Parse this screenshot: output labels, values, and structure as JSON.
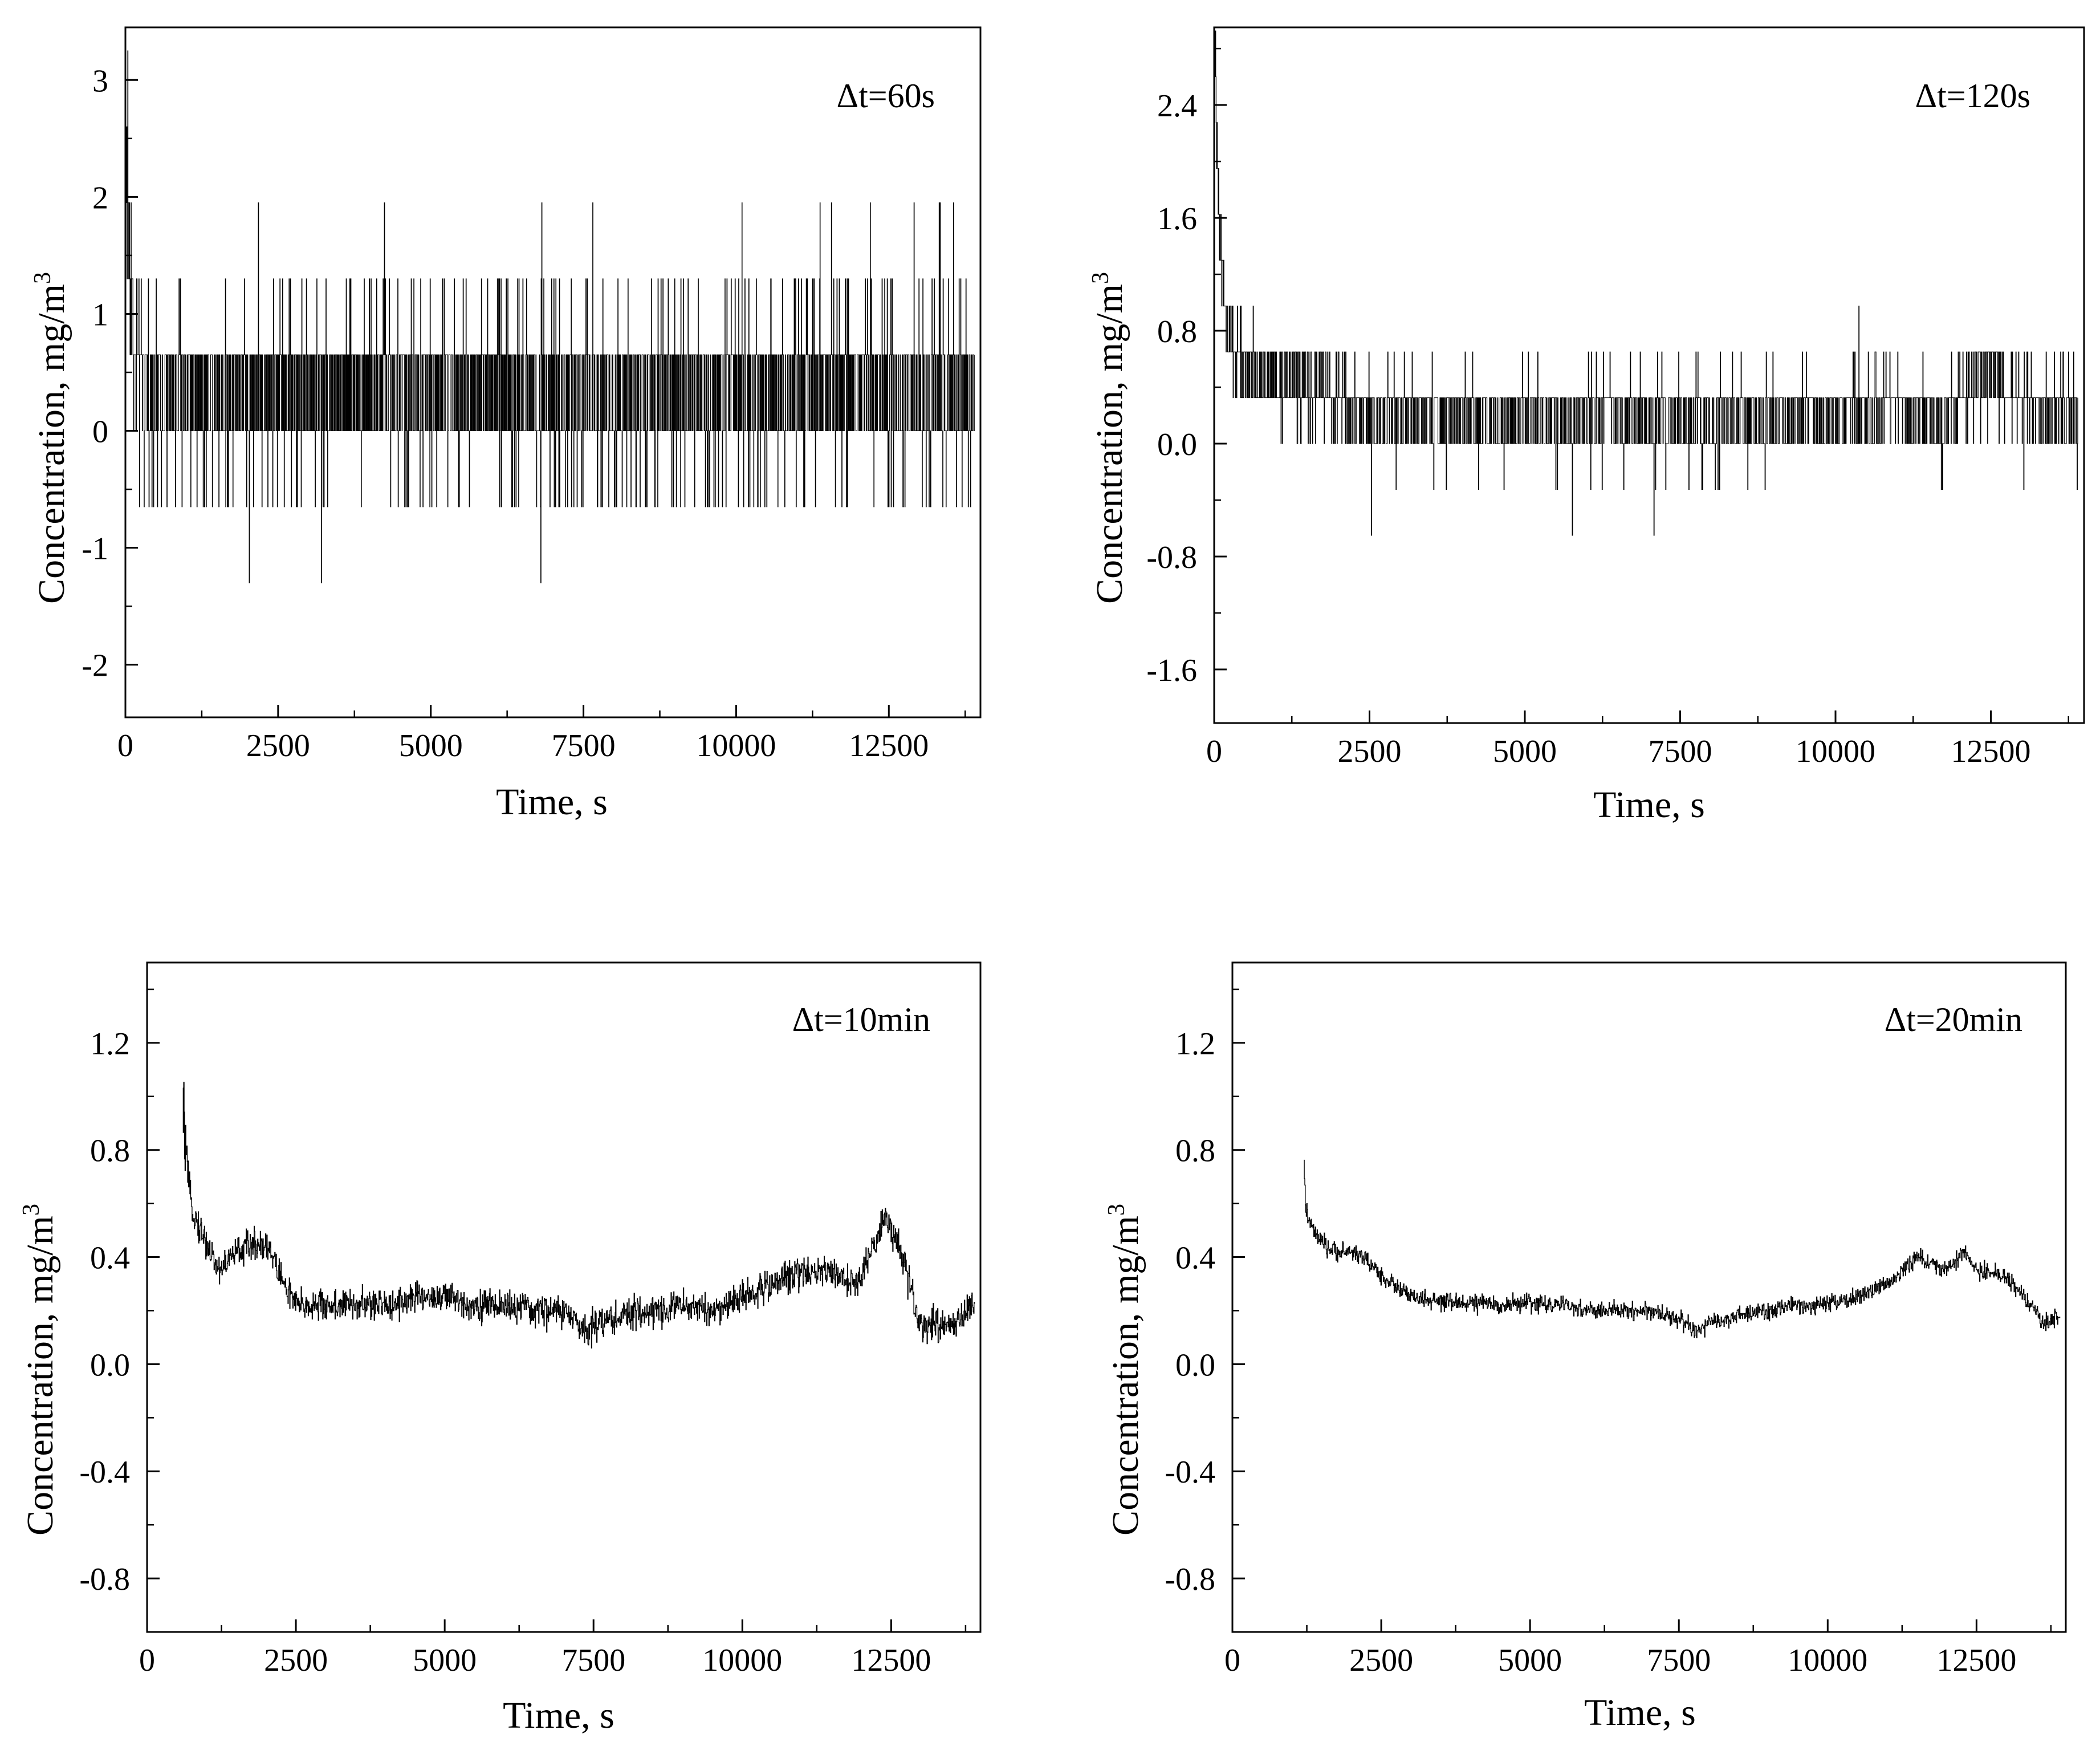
{
  "chart_data": [
    {
      "type": "line",
      "panel_label": "Δt=60s",
      "xlabel": "Time, s",
      "ylabel": "Concentration, mg/m",
      "ylabel_superscript": "3",
      "xlim": [
        0,
        14000
      ],
      "ylim": [
        -2.45,
        3.45
      ],
      "xticks": [
        0,
        2500,
        5000,
        7500,
        10000,
        12500
      ],
      "xtick_labels": [
        "0",
        "2500",
        "5000",
        "7500",
        "10000",
        "12500"
      ],
      "yticks": [
        -2,
        -1,
        0,
        1,
        2,
        3
      ],
      "ytick_labels": [
        "-2",
        "-1",
        "0",
        "1",
        "2",
        "3"
      ],
      "grid": false,
      "series": [
        {
          "x": [
            0,
            140,
            300,
            500,
            800,
            1000,
            1500,
            2000,
            2500,
            3000,
            3500,
            4000,
            4500,
            5000,
            5500,
            6000,
            6500,
            7000,
            7500,
            8000,
            8500,
            9000,
            9500,
            10000,
            10500,
            11000,
            11500,
            12000,
            12500,
            13000,
            13500,
            13900
          ],
          "y": [
            2.6,
            0.6,
            0.35,
            0.33,
            0.33,
            0.35,
            0.33,
            0.32,
            0.33,
            0.32,
            0.33,
            0.32,
            0.3,
            0.32,
            0.33,
            0.32,
            0.33,
            0.3,
            0.25,
            0.28,
            0.25,
            0.3,
            0.33,
            0.3,
            0.32,
            0.33,
            0.35,
            0.33,
            0.3,
            0.3,
            0.32,
            0.33
          ],
          "noise_envelope": [
            [
              [
                0,
                13900
              ],
              [
                -1.3,
                2.0
              ]
            ],
            [
              [
                0,
                13900
              ],
              [
                -0.65,
                1.3
              ]
            ]
          ]
        }
      ]
    },
    {
      "type": "line",
      "panel_label": "Δt=120s",
      "xlabel": "Time, s",
      "ylabel": "Concentration, mg/m",
      "ylabel_superscript": "3",
      "xlim": [
        0,
        14000
      ],
      "ylim": [
        -1.98,
        2.95
      ],
      "xticks": [
        0,
        2500,
        5000,
        7500,
        10000,
        12500
      ],
      "xtick_labels": [
        "0",
        "2500",
        "5000",
        "7500",
        "10000",
        "12500"
      ],
      "yticks": [
        -1.6,
        -0.8,
        0.0,
        0.8,
        1.6,
        2.4
      ],
      "ytick_labels": [
        "-1.6",
        "-0.8",
        "0.0",
        "0.8",
        "1.6",
        "2.4"
      ],
      "grid": false,
      "series": [
        {
          "x": [
            0,
            100,
            200,
            350,
            500,
            800,
            1000,
            1500,
            2000,
            2500,
            3000,
            3500,
            4000,
            4500,
            5000,
            5500,
            6000,
            6500,
            7000,
            7500,
            8000,
            8500,
            9000,
            9500,
            10000,
            10500,
            11000,
            11500,
            11700,
            12000,
            12500,
            13000,
            13500,
            13900
          ],
          "y": [
            2.7,
            1.3,
            0.8,
            0.6,
            0.5,
            0.45,
            0.45,
            0.4,
            0.3,
            0.2,
            0.2,
            0.2,
            0.2,
            0.2,
            0.2,
            0.2,
            0.2,
            0.2,
            0.2,
            0.15,
            0.15,
            0.15,
            0.15,
            0.2,
            0.2,
            0.2,
            0.25,
            0.25,
            0.05,
            0.35,
            0.5,
            0.3,
            0.2,
            0.2
          ],
          "noise_envelope": [
            [
              [
                0,
                13900
              ],
              [
                -0.65,
                1.3
              ]
            ]
          ]
        }
      ]
    },
    {
      "type": "line",
      "panel_label": "Δt=10min",
      "xlabel": "Time, s",
      "ylabel": "Concentration, mg/m",
      "ylabel_superscript": "3",
      "xlim": [
        0,
        14000
      ],
      "ylim": [
        -1.0,
        1.5
      ],
      "xticks": [
        0,
        2500,
        5000,
        7500,
        10000,
        12500
      ],
      "xtick_labels": [
        "0",
        "2500",
        "5000",
        "7500",
        "10000",
        "12500"
      ],
      "yticks": [
        -0.8,
        -0.4,
        0.0,
        0.4,
        0.8,
        1.2
      ],
      "ytick_labels": [
        "-0.8",
        "-0.4",
        "0.0",
        "0.4",
        "0.8",
        "1.2"
      ],
      "grid": false,
      "series": [
        {
          "x": [
            600,
            700,
            800,
            1000,
            1200,
            1500,
            1800,
            2000,
            2300,
            2500,
            3000,
            3500,
            4000,
            4500,
            5000,
            5500,
            6000,
            6500,
            7000,
            7300,
            7500,
            8000,
            8500,
            9000,
            9500,
            10000,
            10500,
            11000,
            11500,
            11800,
            12000,
            12200,
            12400,
            12600,
            12800,
            13000,
            13500,
            13900
          ],
          "y": [
            0.95,
            0.65,
            0.55,
            0.45,
            0.35,
            0.42,
            0.45,
            0.45,
            0.3,
            0.22,
            0.22,
            0.22,
            0.22,
            0.25,
            0.25,
            0.22,
            0.22,
            0.2,
            0.2,
            0.13,
            0.15,
            0.18,
            0.2,
            0.22,
            0.2,
            0.25,
            0.3,
            0.35,
            0.35,
            0.3,
            0.32,
            0.45,
            0.55,
            0.45,
            0.3,
            0.15,
            0.15,
            0.22
          ]
        }
      ]
    },
    {
      "type": "line",
      "panel_label": "Δt=20min",
      "xlabel": "Time, s",
      "ylabel": "Concentration, mg/m",
      "ylabel_superscript": "3",
      "xlim": [
        0,
        14000
      ],
      "ylim": [
        -1.0,
        1.5
      ],
      "xticks": [
        0,
        2500,
        5000,
        7500,
        10000,
        12500
      ],
      "xtick_labels": [
        "0",
        "2500",
        "5000",
        "7500",
        "10000",
        "12500"
      ],
      "yticks": [
        -0.8,
        -0.4,
        0.0,
        0.4,
        0.8,
        1.2
      ],
      "ytick_labels": [
        "-0.8",
        "-0.4",
        "0.0",
        "0.4",
        "0.8",
        "1.2"
      ],
      "grid": false,
      "series": [
        {
          "x": [
            1200,
            1250,
            1400,
            1600,
            1800,
            2000,
            2200,
            2500,
            3000,
            3500,
            4000,
            4500,
            5000,
            5500,
            6000,
            6500,
            7000,
            7500,
            7800,
            8000,
            8500,
            9000,
            9500,
            10000,
            10500,
            11000,
            11500,
            12000,
            12300,
            12500,
            13000,
            13300,
            13600,
            13900
          ],
          "y": [
            0.7,
            0.55,
            0.48,
            0.43,
            0.42,
            0.42,
            0.4,
            0.33,
            0.25,
            0.23,
            0.23,
            0.22,
            0.23,
            0.22,
            0.2,
            0.2,
            0.2,
            0.17,
            0.12,
            0.15,
            0.18,
            0.2,
            0.22,
            0.22,
            0.25,
            0.3,
            0.4,
            0.35,
            0.42,
            0.35,
            0.33,
            0.25,
            0.15,
            0.18
          ]
        }
      ]
    }
  ]
}
